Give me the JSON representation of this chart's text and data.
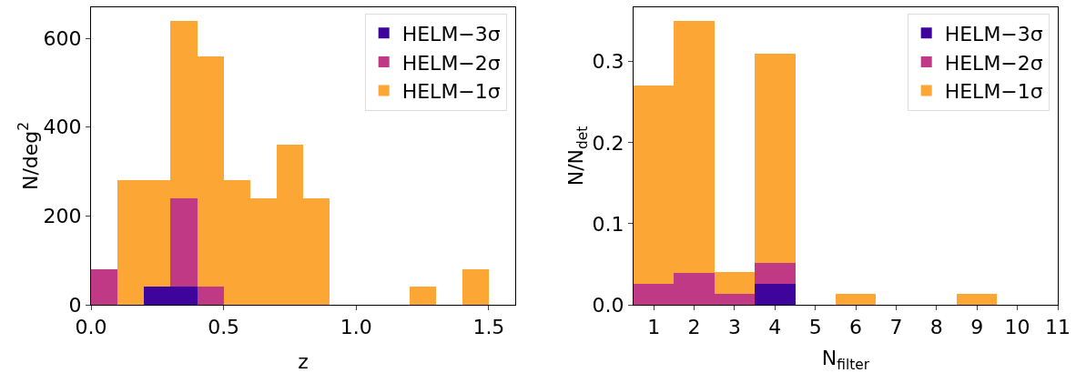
{
  "chart_data": [
    {
      "type": "bar",
      "stacked": true,
      "xlabel": "z",
      "ylabel": "N/deg$^{2}$",
      "x": [
        0.05,
        0.15,
        0.25,
        0.35,
        0.45,
        0.55,
        0.65,
        0.75,
        0.85,
        0.95,
        1.05,
        1.15,
        1.25,
        1.35,
        1.45
      ],
      "series": [
        {
          "name": "HELM−3σ",
          "color": "#3e049c",
          "values": [
            0,
            0,
            40,
            40,
            0,
            0,
            0,
            0,
            0,
            0,
            0,
            0,
            0,
            0,
            0
          ]
        },
        {
          "name": "HELM−2σ",
          "color": "#bf3984",
          "values": [
            80,
            0,
            0,
            200,
            40,
            0,
            0,
            0,
            0,
            0,
            0,
            0,
            0,
            0,
            0
          ]
        },
        {
          "name": "HELM−1σ",
          "color": "#fca636",
          "values": [
            0,
            280,
            240,
            400,
            520,
            280,
            240,
            360,
            240,
            0,
            0,
            0,
            40,
            0,
            80
          ]
        }
      ],
      "xlim": [
        0,
        1.6
      ],
      "xticks": [
        {
          "value": 0,
          "label": "0.0"
        },
        0.5,
        {
          "value": 1,
          "label": "1.0"
        },
        1.5
      ],
      "ylim": [
        0,
        670
      ],
      "yticks": [
        0,
        200,
        400,
        600
      ],
      "grid": false,
      "legend": "top right"
    },
    {
      "type": "bar",
      "stacked": true,
      "xlabel": "N$_{filter}$",
      "ylabel": "N/N$_{det}$",
      "x": [
        1,
        2,
        3,
        4,
        5,
        6,
        7,
        8,
        9,
        10
      ],
      "series": [
        {
          "name": "HELM−3σ",
          "color": "#3e049c",
          "values": [
            0,
            0,
            0,
            0.026,
            0,
            0,
            0,
            0,
            0,
            0
          ]
        },
        {
          "name": "HELM−2σ",
          "color": "#bf3984",
          "values": [
            0.026,
            0.039,
            0.013,
            0.026,
            0,
            0,
            0,
            0,
            0,
            0
          ]
        },
        {
          "name": "HELM−1σ",
          "color": "#fca636",
          "values": [
            0.244,
            0.311,
            0.027,
            0.258,
            0,
            0.013,
            0,
            0,
            0.013,
            0
          ]
        }
      ],
      "xlim": [
        0.5,
        11
      ],
      "xticks": [
        1,
        2,
        3,
        4,
        5,
        6,
        7,
        8,
        9,
        10,
        11
      ],
      "ylim": [
        0,
        0.367
      ],
      "yticks": [
        {
          "value": 0,
          "label": "0.0"
        },
        0.1,
        0.2,
        0.3
      ],
      "grid": false,
      "legend": "top right"
    }
  ]
}
